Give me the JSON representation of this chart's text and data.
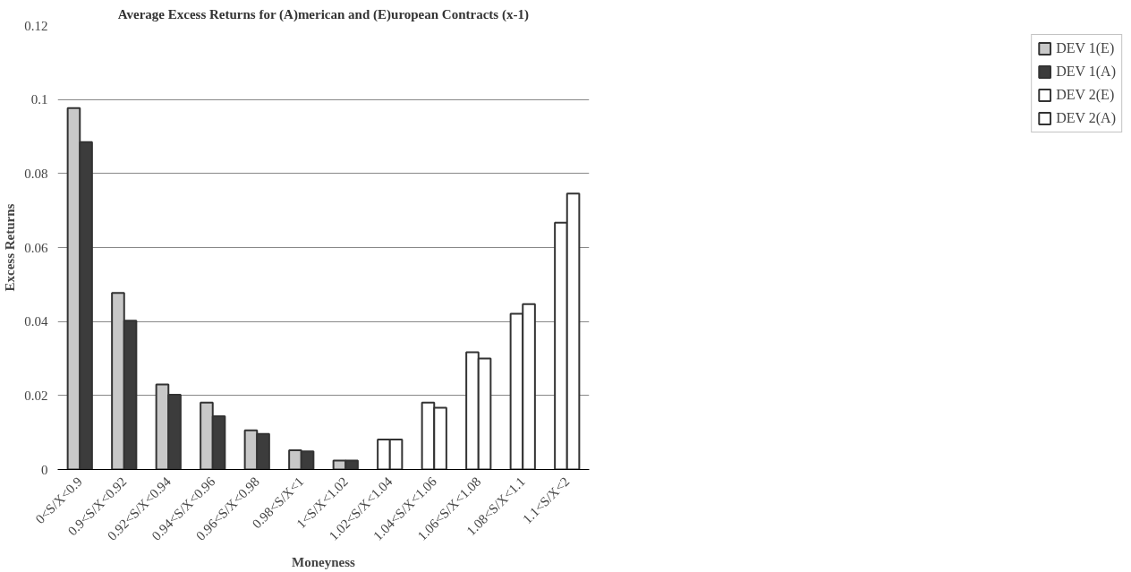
{
  "chart_data": {
    "type": "bar",
    "title": "Average Excess Returns for (A)merican and (E)uropean Contracts (x-1)",
    "xlabel": "Moneyness",
    "ylabel": "Excess Returns",
    "categories": [
      "0<S/X<0.9",
      "0.9<S/X<0.92",
      "0.92<S/X<0.94",
      "0.94<S/X<0.96",
      "0.96<S/X<0.98",
      "0.98<S/X<1",
      "1<S/X<1.02",
      "1.02<S/X<1.04",
      "1.04<S/X<1.06",
      "1.06<S/X<1.08",
      "1.08<S/X<1.1",
      "1.1<S/X<2"
    ],
    "series": [
      {
        "name": "DEV 1(E)",
        "color": "#c8c8c8",
        "values": [
          0.0977,
          0.0477,
          0.023,
          0.0181,
          0.0106,
          0.0052,
          0.0024,
          null,
          null,
          null,
          null,
          null
        ]
      },
      {
        "name": "DEV 1(A)",
        "color": "#3c3c3c",
        "values": [
          0.0885,
          0.0402,
          0.0202,
          0.0144,
          0.0096,
          0.0049,
          0.0024,
          null,
          null,
          null,
          null,
          null
        ]
      },
      {
        "name": "DEV 2(E)",
        "color": "#ffffff",
        "values": [
          null,
          null,
          null,
          null,
          null,
          null,
          null,
          0.0081,
          0.0181,
          0.0317,
          0.0421,
          0.0667
        ]
      },
      {
        "name": "DEV 2(A)",
        "color": "#ffffff",
        "values": [
          null,
          null,
          null,
          null,
          null,
          null,
          null,
          0.0081,
          0.0167,
          0.03,
          0.0447,
          0.0746
        ]
      }
    ],
    "ylim": [
      0,
      0.12
    ],
    "yticks": [
      0,
      0.02,
      0.04,
      0.06,
      0.08,
      0.1,
      0.12
    ],
    "grid": "y",
    "legend": "right"
  }
}
